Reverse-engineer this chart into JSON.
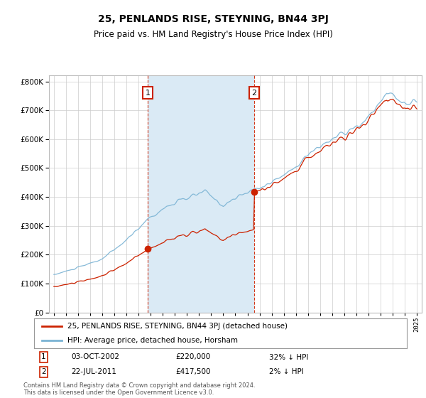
{
  "title": "25, PENLANDS RISE, STEYNING, BN44 3PJ",
  "subtitle": "Price paid vs. HM Land Registry's House Price Index (HPI)",
  "legend_line1": "25, PENLANDS RISE, STEYNING, BN44 3PJ (detached house)",
  "legend_line2": "HPI: Average price, detached house, Horsham",
  "footnote": "Contains HM Land Registry data © Crown copyright and database right 2024.\nThis data is licensed under the Open Government Licence v3.0.",
  "annotation1": {
    "label": "1",
    "date": "03-OCT-2002",
    "price": 220000,
    "note": "32% ↓ HPI"
  },
  "annotation2": {
    "label": "2",
    "date": "22-JUL-2011",
    "price": 417500,
    "note": "2% ↓ HPI"
  },
  "sale1_x": 2002.75,
  "sale1_y": 220000,
  "sale2_x": 2011.55,
  "sale2_y": 417500,
  "hpi_color": "#7ab3d4",
  "price_color": "#cc2200",
  "shading_color": "#daeaf5",
  "annotation_box_color": "#cc2200",
  "background_color": "#ffffff",
  "ylim": [
    0,
    820000
  ],
  "xlim_start": 1994.6,
  "xlim_end": 2025.4,
  "fig_width": 6.0,
  "fig_height": 5.6
}
